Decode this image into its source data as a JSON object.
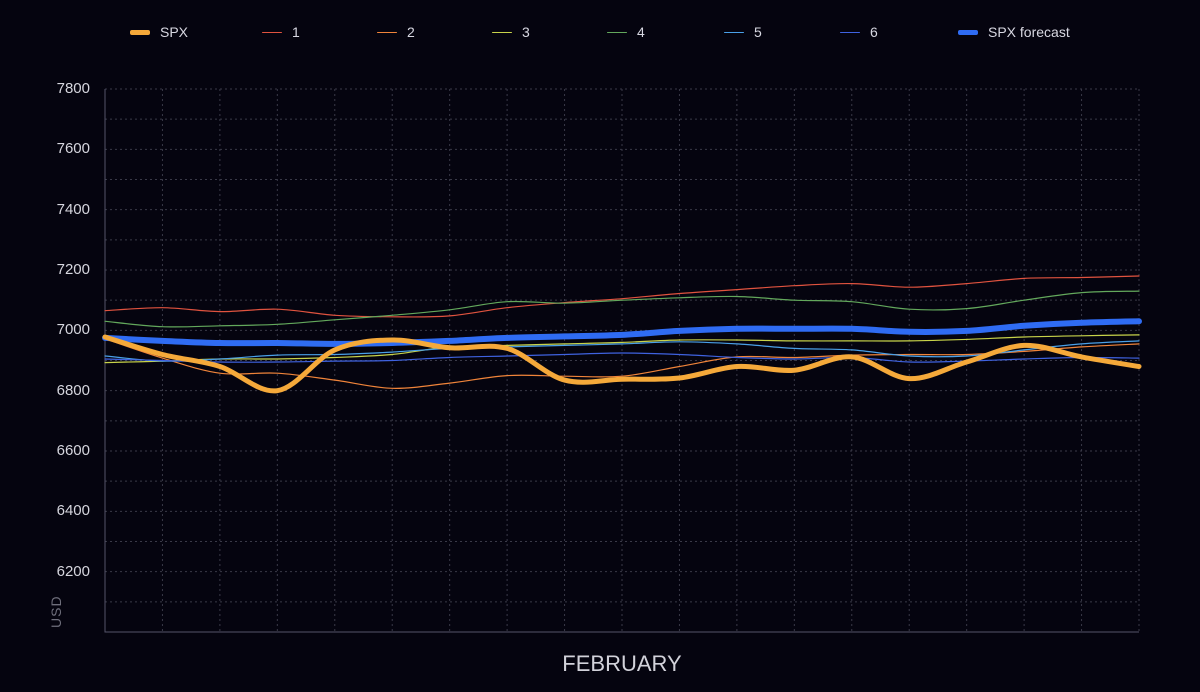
{
  "chart_data": {
    "type": "line",
    "title": "",
    "xlabel": "FEBRUARY",
    "ylabel": "USD",
    "ylim": [
      6000,
      7800
    ],
    "yticks": [
      7800,
      7600,
      7400,
      7200,
      7000,
      6800,
      6600,
      6400,
      6200
    ],
    "x": [
      0,
      1,
      2,
      3,
      4,
      5,
      6,
      7,
      8,
      9,
      10,
      11,
      12,
      13,
      14,
      15,
      16,
      17,
      18
    ],
    "grid": true,
    "legend_position": "top",
    "background": "#05040f",
    "series": [
      {
        "name": "1",
        "color": "#e0533f",
        "width": 1.2,
        "values": [
          7065,
          7075,
          7062,
          7070,
          7050,
          7045,
          7048,
          7075,
          7092,
          7105,
          7122,
          7135,
          7148,
          7155,
          7143,
          7155,
          7172,
          7175,
          7180
        ]
      },
      {
        "name": "2",
        "color": "#f0843a",
        "width": 1.2,
        "values": [
          6972,
          6908,
          6858,
          6858,
          6835,
          6808,
          6825,
          6850,
          6848,
          6848,
          6880,
          6912,
          6910,
          6918,
          6920,
          6920,
          6930,
          6945,
          6955
        ]
      },
      {
        "name": "3",
        "color": "#c8d34a",
        "width": 1.2,
        "values": [
          6893,
          6898,
          6905,
          6905,
          6910,
          6920,
          6945,
          6950,
          6955,
          6960,
          6968,
          6968,
          6965,
          6965,
          6965,
          6970,
          6978,
          6982,
          6985
        ]
      },
      {
        "name": "4",
        "color": "#63a85c",
        "width": 1.2,
        "values": [
          7030,
          7012,
          7015,
          7020,
          7035,
          7050,
          7068,
          7095,
          7090,
          7100,
          7108,
          7112,
          7100,
          7095,
          7070,
          7072,
          7100,
          7125,
          7130
        ]
      },
      {
        "name": "5",
        "color": "#4aa0e8",
        "width": 1.2,
        "values": [
          6915,
          6898,
          6905,
          6918,
          6920,
          6928,
          6940,
          6945,
          6950,
          6955,
          6962,
          6955,
          6940,
          6935,
          6915,
          6915,
          6935,
          6955,
          6965
        ]
      },
      {
        "name": "6",
        "color": "#3f62e0",
        "width": 1.2,
        "values": [
          6905,
          6900,
          6895,
          6895,
          6898,
          6900,
          6910,
          6915,
          6920,
          6925,
          6920,
          6910,
          6905,
          6910,
          6895,
          6898,
          6905,
          6910,
          6908
        ]
      },
      {
        "name": "SPX forecast",
        "color": "#2f6cf3",
        "width": 6,
        "values": [
          6975,
          6965,
          6958,
          6958,
          6955,
          6958,
          6965,
          6975,
          6980,
          6985,
          6998,
          7005,
          7005,
          7005,
          6995,
          6998,
          7015,
          7025,
          7030
        ]
      },
      {
        "name": "SPX",
        "color": "#f5a93a",
        "width": 5,
        "values": [
          6978,
          6920,
          6880,
          6800,
          6935,
          6968,
          6942,
          6940,
          6835,
          6838,
          6842,
          6880,
          6868,
          6912,
          6840,
          6895,
          6950,
          6912,
          6880
        ]
      }
    ]
  },
  "legend": [
    {
      "label": "SPX",
      "color": "#f5a93a",
      "thick": true
    },
    {
      "label": "1",
      "color": "#e0533f",
      "thick": false
    },
    {
      "label": "2",
      "color": "#f0843a",
      "thick": false
    },
    {
      "label": "3",
      "color": "#c8d34a",
      "thick": false
    },
    {
      "label": "4",
      "color": "#63a85c",
      "thick": false
    },
    {
      "label": "5",
      "color": "#4aa0e8",
      "thick": false
    },
    {
      "label": "6",
      "color": "#3f62e0",
      "thick": false
    },
    {
      "label": "SPX forecast",
      "color": "#2f6cf3",
      "thick": true
    }
  ]
}
